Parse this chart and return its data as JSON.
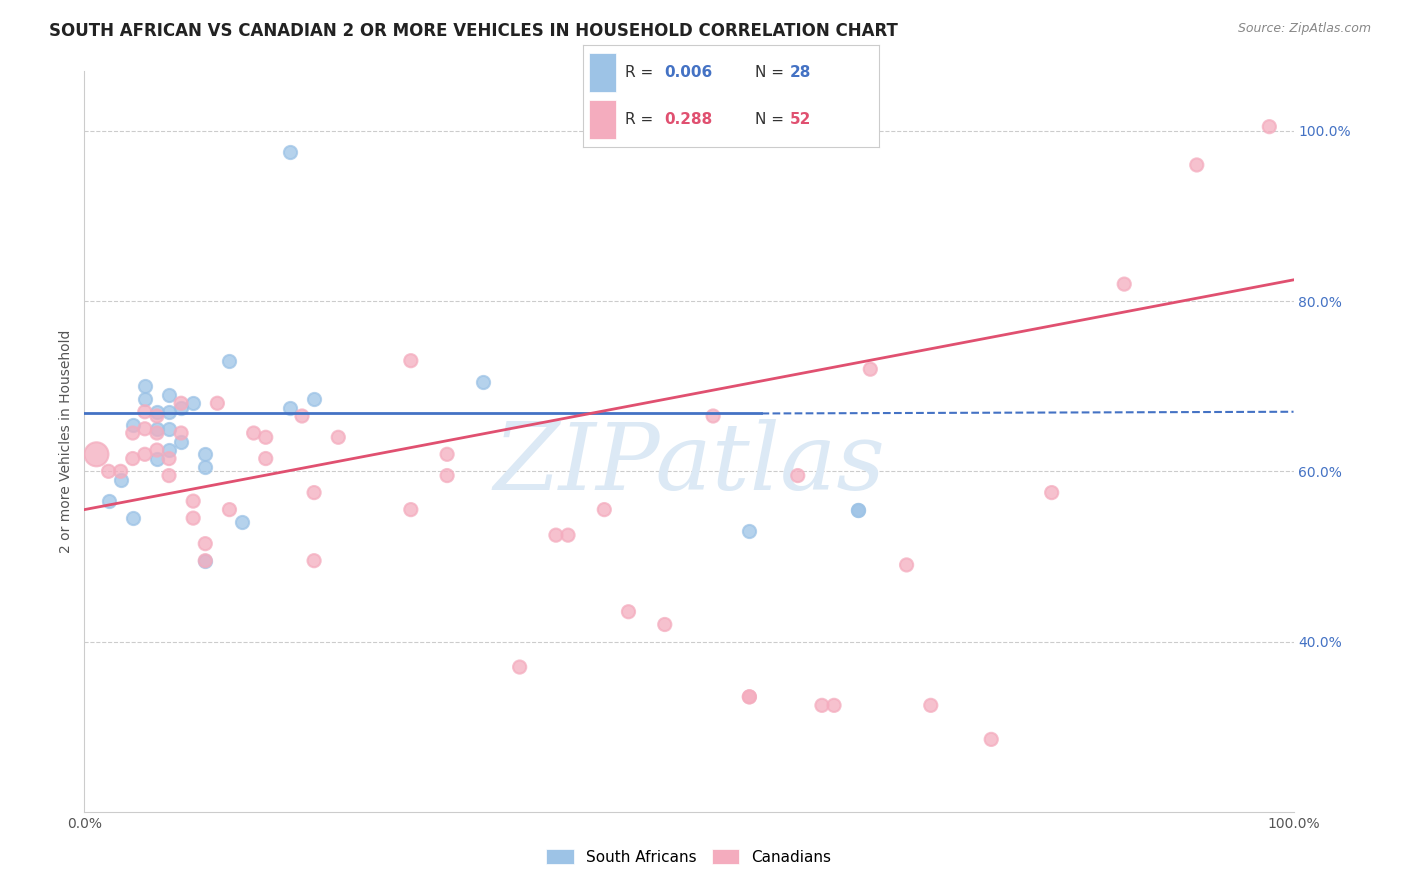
{
  "title": "SOUTH AFRICAN VS CANADIAN 2 OR MORE VEHICLES IN HOUSEHOLD CORRELATION CHART",
  "source": "Source: ZipAtlas.com",
  "ylabel": "2 or more Vehicles in Household",
  "xlim": [
    0.0,
    1.0
  ],
  "ylim": [
    0.2,
    1.07
  ],
  "yticks": [
    0.4,
    0.6,
    0.8,
    1.0
  ],
  "ytick_labels": [
    "40.0%",
    "60.0%",
    "80.0%",
    "100.0%"
  ],
  "xticks": [
    0.0,
    0.2,
    0.4,
    0.6,
    0.8,
    1.0
  ],
  "xtick_labels": [
    "0.0%",
    "",
    "",
    "",
    "",
    "100.0%"
  ],
  "blue_color": "#9dc3e6",
  "pink_color": "#f4acbe",
  "blue_line_color": "#4472c4",
  "pink_line_color": "#e05070",
  "watermark_text": "ZIPatlas",
  "watermark_color": "#dce9f5",
  "background_color": "#ffffff",
  "title_fontsize": 12,
  "label_fontsize": 10,
  "tick_fontsize": 10,
  "blue_points_x": [
    0.02,
    0.03,
    0.04,
    0.04,
    0.05,
    0.05,
    0.06,
    0.06,
    0.06,
    0.07,
    0.07,
    0.07,
    0.07,
    0.08,
    0.08,
    0.09,
    0.1,
    0.1,
    0.1,
    0.12,
    0.13,
    0.17,
    0.17,
    0.19,
    0.33,
    0.55,
    0.64,
    0.64
  ],
  "blue_points_y": [
    0.565,
    0.59,
    0.655,
    0.545,
    0.685,
    0.7,
    0.67,
    0.65,
    0.615,
    0.69,
    0.67,
    0.65,
    0.625,
    0.675,
    0.635,
    0.68,
    0.62,
    0.605,
    0.495,
    0.73,
    0.54,
    0.675,
    0.975,
    0.685,
    0.705,
    0.53,
    0.555,
    0.555
  ],
  "pink_points_x": [
    0.01,
    0.02,
    0.03,
    0.04,
    0.04,
    0.05,
    0.05,
    0.05,
    0.06,
    0.06,
    0.06,
    0.07,
    0.07,
    0.08,
    0.08,
    0.09,
    0.09,
    0.1,
    0.1,
    0.11,
    0.12,
    0.14,
    0.15,
    0.15,
    0.18,
    0.19,
    0.19,
    0.21,
    0.27,
    0.27,
    0.3,
    0.3,
    0.36,
    0.39,
    0.4,
    0.43,
    0.45,
    0.48,
    0.52,
    0.55,
    0.55,
    0.59,
    0.61,
    0.62,
    0.65,
    0.68,
    0.7,
    0.75,
    0.8,
    0.86,
    0.92,
    0.98
  ],
  "pink_points_y": [
    0.62,
    0.6,
    0.6,
    0.615,
    0.645,
    0.67,
    0.65,
    0.62,
    0.665,
    0.645,
    0.625,
    0.615,
    0.595,
    0.68,
    0.645,
    0.565,
    0.545,
    0.515,
    0.495,
    0.68,
    0.555,
    0.645,
    0.615,
    0.64,
    0.665,
    0.575,
    0.495,
    0.64,
    0.73,
    0.555,
    0.62,
    0.595,
    0.37,
    0.525,
    0.525,
    0.555,
    0.435,
    0.42,
    0.665,
    0.335,
    0.335,
    0.595,
    0.325,
    0.325,
    0.72,
    0.49,
    0.325,
    0.285,
    0.575,
    0.82,
    0.96,
    1.005
  ],
  "blue_trend_x0": 0.0,
  "blue_trend_x1": 0.56,
  "blue_trend_x2": 1.0,
  "blue_trend_y0": 0.668,
  "blue_trend_y1": 0.668,
  "blue_trend_y2": 0.67,
  "pink_trend_x0": 0.0,
  "pink_trend_x1": 1.0,
  "pink_trend_y0": 0.555,
  "pink_trend_y1": 0.825
}
